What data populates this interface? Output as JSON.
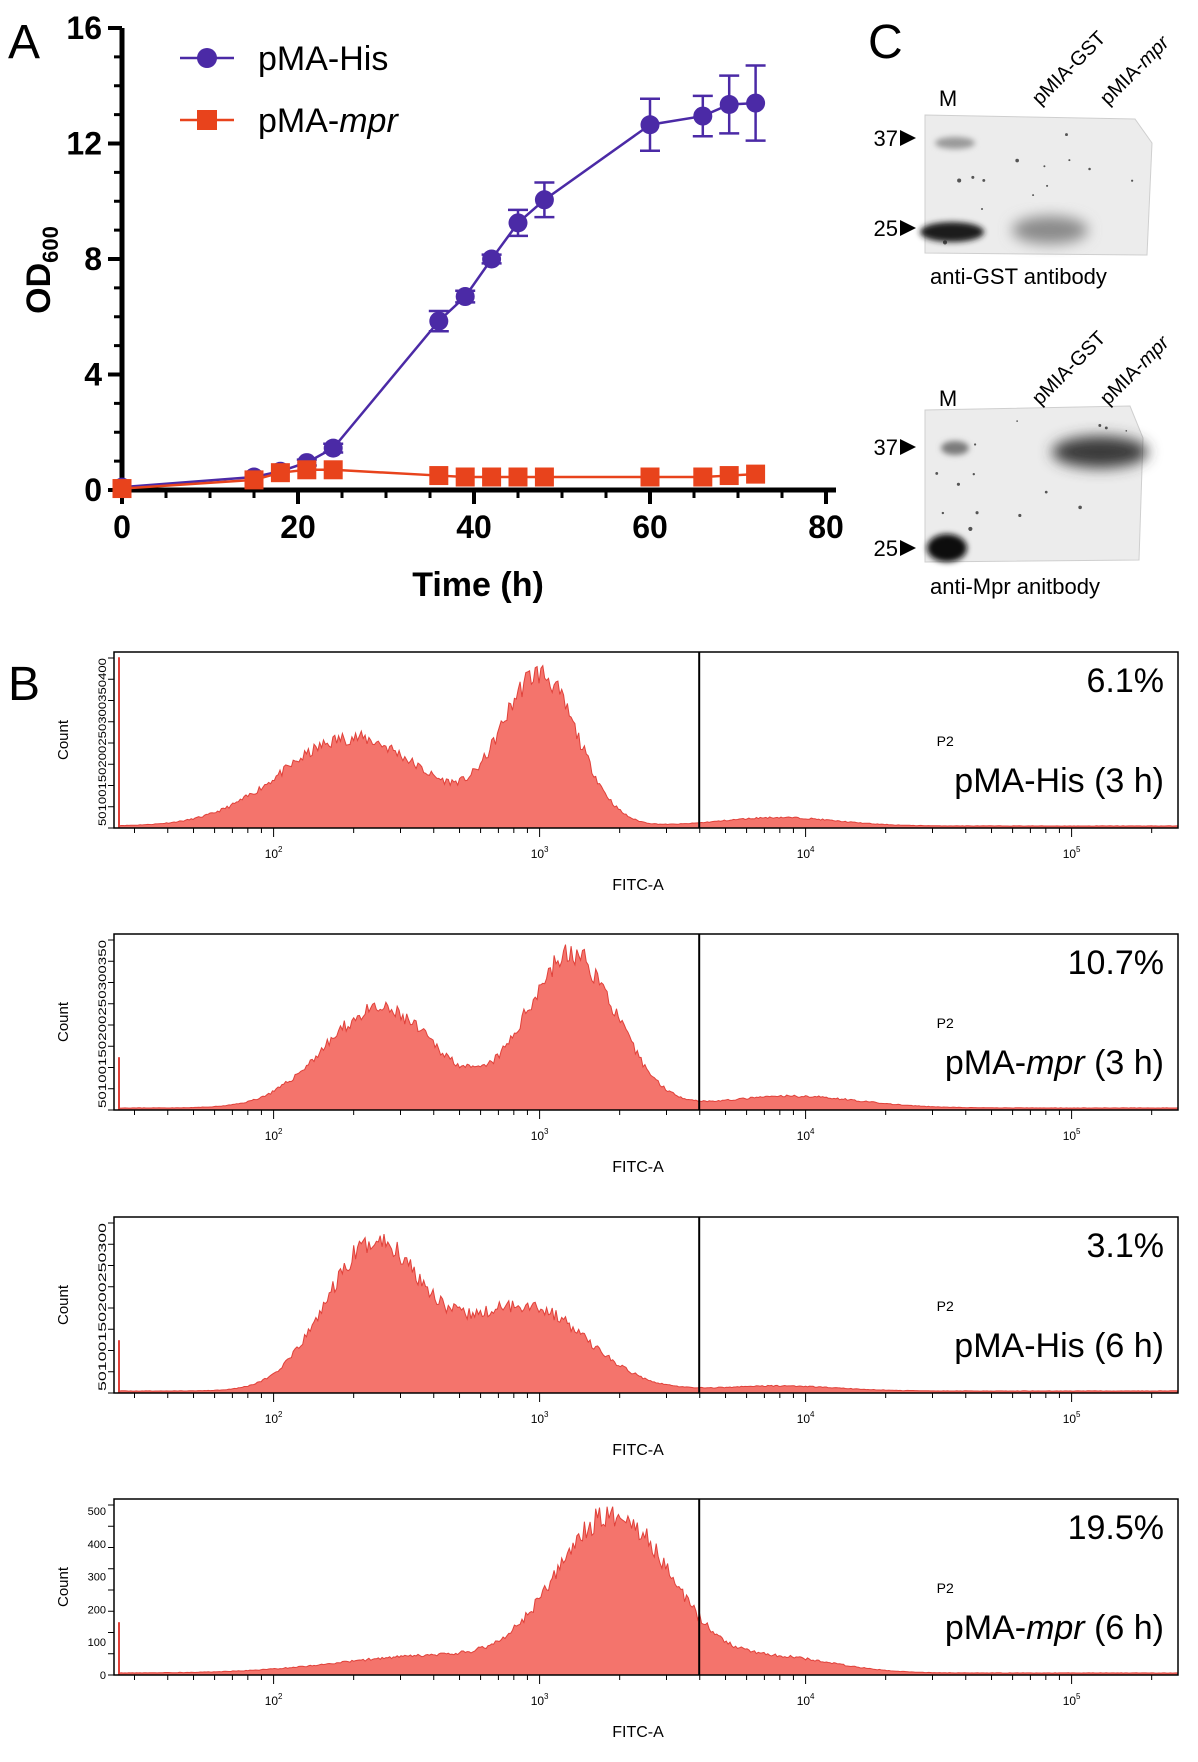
{
  "panel_letters": [
    "A",
    "B",
    "C"
  ],
  "chart_data": [
    {
      "type": "line",
      "ylabel_main": "OD",
      "ylabel_sub": "600",
      "xlabel": "Time (h)",
      "xlim": [
        0,
        80
      ],
      "ylim": [
        0,
        16
      ],
      "xticks": [
        "0",
        "20",
        "40",
        "60",
        "80"
      ],
      "yticks": [
        "0",
        "4",
        "8",
        "12",
        "16"
      ],
      "legend_position": "top-left",
      "series": [
        {
          "name_plain": "pMA-His",
          "name_italic": "",
          "color": "#4b2aa6",
          "marker": "circle",
          "x": [
            0,
            15,
            18,
            21,
            24,
            36,
            39,
            42,
            45,
            48,
            60,
            66,
            69,
            72
          ],
          "y": [
            0.1,
            0.45,
            0.65,
            0.95,
            1.45,
            5.85,
            6.7,
            8.0,
            9.25,
            10.05,
            12.65,
            12.95,
            13.35,
            13.4
          ],
          "err": [
            0.0,
            0.05,
            0.05,
            0.1,
            0.15,
            0.35,
            0.2,
            0.15,
            0.45,
            0.6,
            0.9,
            0.7,
            1.0,
            1.3
          ]
        },
        {
          "name_plain": "pMA-",
          "name_italic": "mpr",
          "color": "#e8431c",
          "marker": "square",
          "x": [
            0,
            15,
            18,
            21,
            24,
            36,
            39,
            42,
            45,
            48,
            60,
            66,
            69,
            72
          ],
          "y": [
            0.05,
            0.35,
            0.6,
            0.7,
            0.7,
            0.5,
            0.45,
            0.45,
            0.45,
            0.45,
            0.45,
            0.45,
            0.5,
            0.55
          ],
          "err": [
            0,
            0,
            0,
            0,
            0,
            0,
            0,
            0,
            0,
            0,
            0,
            0,
            0,
            0
          ]
        }
      ]
    },
    {
      "type": "area",
      "panels": [
        {
          "percent": "6.1%",
          "label_plain": "pMA-His",
          "label_italic": "",
          "label_suffix": " (3 h)",
          "gate_label": "P2",
          "xlabel": "FITC-A",
          "ylabel": "Count",
          "ytick_text": "50100150200250300350400",
          "xlim_log": [
            1.4,
            5.4
          ],
          "gate_at_log": 3.6,
          "xticks_log": [
            2,
            3,
            4,
            5
          ],
          "peaks": [
            {
              "center_log": 2.3,
              "width": 0.38,
              "height": 0.52
            },
            {
              "center_log": 3.0,
              "width": 0.2,
              "height": 0.88
            },
            {
              "center_log": 3.9,
              "width": 0.3,
              "height": 0.05
            }
          ],
          "seed": 11
        },
        {
          "percent": "10.7%",
          "label_plain": "pMA-",
          "label_italic": "mpr",
          "label_suffix": " (3 h)",
          "gate_label": "P2",
          "xlabel": "FITC-A",
          "ylabel": "Count",
          "ytick_text": "50100150200250300350",
          "xlim_log": [
            1.4,
            5.4
          ],
          "gate_at_log": 3.6,
          "xticks_log": [
            2,
            3,
            4,
            5
          ],
          "peaks": [
            {
              "center_log": 2.4,
              "width": 0.3,
              "height": 0.58
            },
            {
              "center_log": 3.12,
              "width": 0.24,
              "height": 0.9
            },
            {
              "center_log": 3.95,
              "width": 0.35,
              "height": 0.07
            }
          ],
          "seed": 23
        },
        {
          "percent": "3.1%",
          "label_plain": "pMA-His",
          "label_italic": "",
          "label_suffix": " (6 h)",
          "gate_label": "P2",
          "xlabel": "FITC-A",
          "ylabel": "Count",
          "ytick_text": "50100150200250300",
          "xlim_log": [
            1.4,
            5.4
          ],
          "gate_at_log": 3.6,
          "xticks_log": [
            2,
            3,
            4,
            5
          ],
          "peaks": [
            {
              "center_log": 2.38,
              "width": 0.26,
              "height": 0.86
            },
            {
              "center_log": 2.95,
              "width": 0.32,
              "height": 0.5
            },
            {
              "center_log": 3.9,
              "width": 0.3,
              "height": 0.03
            }
          ],
          "seed": 37
        },
        {
          "percent": "19.5%",
          "label_plain": "pMA-",
          "label_italic": "mpr",
          "label_suffix": " (6 h)",
          "gate_label": "P2",
          "xlabel": "FITC-A",
          "ylabel": "Count",
          "ytick_text": "0100200300400500",
          "ytick_values": [
            "0",
            "100",
            "200",
            "300",
            "400",
            "500"
          ],
          "xlim_log": [
            1.4,
            5.4
          ],
          "gate_at_log": 3.6,
          "xticks_log": [
            2,
            3,
            4,
            5
          ],
          "peaks": [
            {
              "center_log": 3.28,
              "width": 0.3,
              "height": 0.92
            },
            {
              "center_log": 2.6,
              "width": 0.5,
              "height": 0.1
            },
            {
              "center_log": 3.9,
              "width": 0.3,
              "height": 0.09
            }
          ],
          "seed": 53
        }
      ]
    }
  ],
  "blots": [
    {
      "lanes": [
        "M",
        "pMIA-GST",
        "pMIA-"
      ],
      "lane_italic": "mpr",
      "markers": [
        "37",
        "25"
      ],
      "caption": "anti-GST antibody"
    },
    {
      "lanes": [
        "M",
        "pMIA-GST",
        "pMIA-"
      ],
      "lane_italic": "mpr",
      "markers": [
        "37",
        "25"
      ],
      "caption": "anti-Mpr anitbody"
    }
  ]
}
